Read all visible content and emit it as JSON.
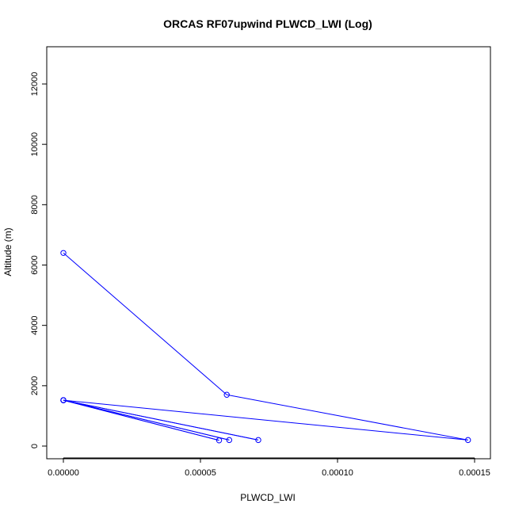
{
  "chart_data": {
    "type": "line",
    "title": "ORCAS RF07upwind PLWCD_LWI (Log)",
    "xlabel": "PLWCD_LWI",
    "ylabel": "Altitude (m)",
    "xlim": [
      0,
      0.00015
    ],
    "ylim": [
      0,
      13000
    ],
    "x_ticks": [
      0,
      5e-05,
      0.0001,
      0.00015
    ],
    "x_tick_labels": [
      "0.00000",
      "0.00005",
      "0.00010",
      "0.00015"
    ],
    "y_ticks": [
      0,
      2000,
      4000,
      6000,
      8000,
      10000,
      12000
    ],
    "y_tick_labels": [
      "0",
      "2000",
      "4000",
      "6000",
      "8000",
      "10000",
      "12000"
    ],
    "series": [
      {
        "color": "#0000ff",
        "x": [
          0.0,
          5.96e-05,
          0.0001476,
          0.0,
          7.11e-05,
          0.0,
          6.05e-05,
          0.0,
          5.68e-05,
          0.0
        ],
        "y": [
          6400,
          1700,
          200,
          1520,
          200,
          1520,
          200,
          1520,
          190,
          1520
        ]
      }
    ],
    "grid": false,
    "legend": "none"
  }
}
